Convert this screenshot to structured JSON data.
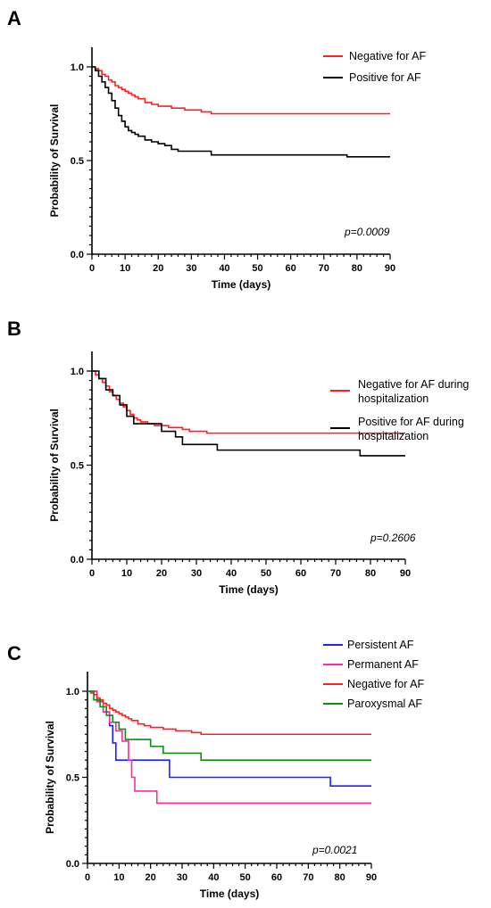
{
  "chart_data": [
    {
      "type": "line",
      "panel_label": "A",
      "xlabel": "Time (days)",
      "ylabel": "Probability of Survival",
      "xlim": [
        0,
        90
      ],
      "ylim": [
        0,
        1.0
      ],
      "x_ticks": [
        "0",
        "10",
        "20",
        "30",
        "40",
        "50",
        "60",
        "70",
        "80",
        "90"
      ],
      "y_ticks": [
        "0.0",
        "0.5",
        "1.0"
      ],
      "annotation": "p=0.0009",
      "legend_position": "top-right",
      "series": [
        {
          "name": "Negative for AF",
          "color": "#ff2020",
          "x": [
            0,
            1,
            2,
            3,
            4,
            5,
            6,
            7,
            8,
            9,
            10,
            11,
            12,
            13,
            14,
            16,
            18,
            20,
            22,
            24,
            26,
            28,
            30,
            33,
            36,
            90
          ],
          "y": [
            1.0,
            0.99,
            0.98,
            0.96,
            0.95,
            0.93,
            0.92,
            0.9,
            0.89,
            0.88,
            0.87,
            0.86,
            0.85,
            0.84,
            0.83,
            0.81,
            0.8,
            0.79,
            0.79,
            0.78,
            0.78,
            0.77,
            0.77,
            0.76,
            0.75,
            0.75
          ]
        },
        {
          "name": "Positive for AF",
          "color": "#000000",
          "x": [
            0,
            1,
            2,
            3,
            4,
            5,
            6,
            7,
            8,
            9,
            10,
            11,
            12,
            13,
            14,
            16,
            18,
            20,
            22,
            24,
            26,
            30,
            36,
            77,
            90
          ],
          "y": [
            1.0,
            0.98,
            0.95,
            0.92,
            0.89,
            0.86,
            0.82,
            0.78,
            0.74,
            0.71,
            0.68,
            0.66,
            0.65,
            0.64,
            0.63,
            0.61,
            0.6,
            0.59,
            0.58,
            0.56,
            0.55,
            0.55,
            0.53,
            0.52,
            0.52
          ]
        }
      ]
    },
    {
      "type": "line",
      "panel_label": "B",
      "xlabel": "Time (days)",
      "ylabel": "Probability of Survival",
      "xlim": [
        0,
        90
      ],
      "ylim": [
        0,
        1.0
      ],
      "x_ticks": [
        "0",
        "10",
        "20",
        "30",
        "40",
        "50",
        "60",
        "70",
        "80",
        "90"
      ],
      "y_ticks": [
        "0.0",
        "0.5",
        "1.0"
      ],
      "annotation": "p=0.2606",
      "legend_position": "top-right",
      "series": [
        {
          "name": "Negative for AF during hospitalization",
          "color": "#ff2020",
          "x": [
            0,
            1,
            2,
            3,
            4,
            5,
            6,
            7,
            8,
            9,
            10,
            11,
            12,
            13,
            14,
            16,
            18,
            20,
            22,
            24,
            26,
            28,
            30,
            33,
            36,
            90
          ],
          "y": [
            1.0,
            0.98,
            0.96,
            0.94,
            0.92,
            0.89,
            0.87,
            0.85,
            0.83,
            0.81,
            0.79,
            0.77,
            0.75,
            0.74,
            0.73,
            0.72,
            0.71,
            0.71,
            0.7,
            0.7,
            0.69,
            0.68,
            0.68,
            0.67,
            0.67,
            0.67
          ]
        },
        {
          "name": "Positive for AF during hospitalization",
          "color": "#000000",
          "x": [
            0,
            2,
            4,
            6,
            8,
            10,
            12,
            20,
            24,
            26,
            36,
            77,
            90
          ],
          "y": [
            1.0,
            0.96,
            0.9,
            0.87,
            0.82,
            0.76,
            0.72,
            0.68,
            0.65,
            0.61,
            0.58,
            0.55,
            0.55
          ]
        }
      ]
    },
    {
      "type": "line",
      "panel_label": "C",
      "xlabel": "Time (days)",
      "ylabel": "Probability of Survival",
      "xlim": [
        0,
        90
      ],
      "ylim": [
        0,
        1.0
      ],
      "x_ticks": [
        "0",
        "10",
        "20",
        "30",
        "40",
        "50",
        "60",
        "70",
        "80",
        "90"
      ],
      "y_ticks": [
        "0.0",
        "0.5",
        "1.0"
      ],
      "annotation": "p=0.0021",
      "legend_position": "top-right",
      "series": [
        {
          "name": "Persistent AF",
          "color": "#1f1fff",
          "x": [
            0,
            3,
            5,
            7,
            8,
            9,
            11,
            24,
            26,
            77,
            90
          ],
          "y": [
            1.0,
            0.94,
            0.88,
            0.8,
            0.7,
            0.6,
            0.6,
            0.6,
            0.5,
            0.45,
            0.45
          ]
        },
        {
          "name": "Permanent AF",
          "color": "#ff2a9c",
          "x": [
            0,
            3,
            5,
            7,
            9,
            11,
            13,
            14,
            15,
            22,
            90
          ],
          "y": [
            1.0,
            0.94,
            0.88,
            0.82,
            0.77,
            0.71,
            0.6,
            0.5,
            0.42,
            0.35,
            0.35
          ]
        },
        {
          "name": "Negative for AF",
          "color": "#ff2020",
          "x": [
            0,
            1,
            2,
            3,
            4,
            5,
            6,
            7,
            8,
            9,
            10,
            11,
            12,
            13,
            14,
            16,
            18,
            20,
            22,
            24,
            26,
            28,
            30,
            33,
            36,
            90
          ],
          "y": [
            1.0,
            0.99,
            0.98,
            0.96,
            0.95,
            0.93,
            0.92,
            0.9,
            0.89,
            0.88,
            0.87,
            0.86,
            0.85,
            0.84,
            0.83,
            0.81,
            0.8,
            0.79,
            0.79,
            0.78,
            0.78,
            0.77,
            0.77,
            0.76,
            0.75,
            0.75
          ]
        },
        {
          "name": "Paroxysmal AF",
          "color": "#118a11",
          "x": [
            0,
            2,
            4,
            6,
            8,
            10,
            12,
            16,
            20,
            24,
            30,
            36,
            90
          ],
          "y": [
            1.0,
            0.95,
            0.91,
            0.86,
            0.82,
            0.78,
            0.72,
            0.72,
            0.68,
            0.64,
            0.64,
            0.6,
            0.6
          ]
        }
      ]
    }
  ]
}
